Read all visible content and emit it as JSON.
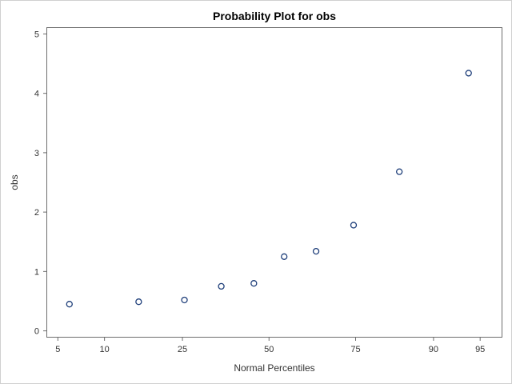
{
  "chart_data": {
    "type": "scatter",
    "title": "Probability Plot for obs",
    "xlabel": "Normal Percentiles",
    "ylabel": "obs",
    "x_scale": "normal-probability",
    "x_ticks": [
      5,
      10,
      25,
      50,
      75,
      90,
      95
    ],
    "y_ticks": [
      0,
      1,
      2,
      3,
      4,
      5
    ],
    "xlim": [
      4.2,
      96.5
    ],
    "ylim": [
      -0.1,
      5.1
    ],
    "grid": false,
    "legend": "none",
    "marker_color": "#1f3f7a",
    "points": [
      {
        "x": 6.0,
        "y": 0.45
      },
      {
        "x": 15.5,
        "y": 0.49
      },
      {
        "x": 25.5,
        "y": 0.52
      },
      {
        "x": 35.5,
        "y": 0.75
      },
      {
        "x": 45.3,
        "y": 0.8
      },
      {
        "x": 54.7,
        "y": 1.25
      },
      {
        "x": 64.3,
        "y": 1.34
      },
      {
        "x": 74.5,
        "y": 1.78
      },
      {
        "x": 84.5,
        "y": 2.68
      },
      {
        "x": 94.0,
        "y": 4.34
      }
    ]
  }
}
